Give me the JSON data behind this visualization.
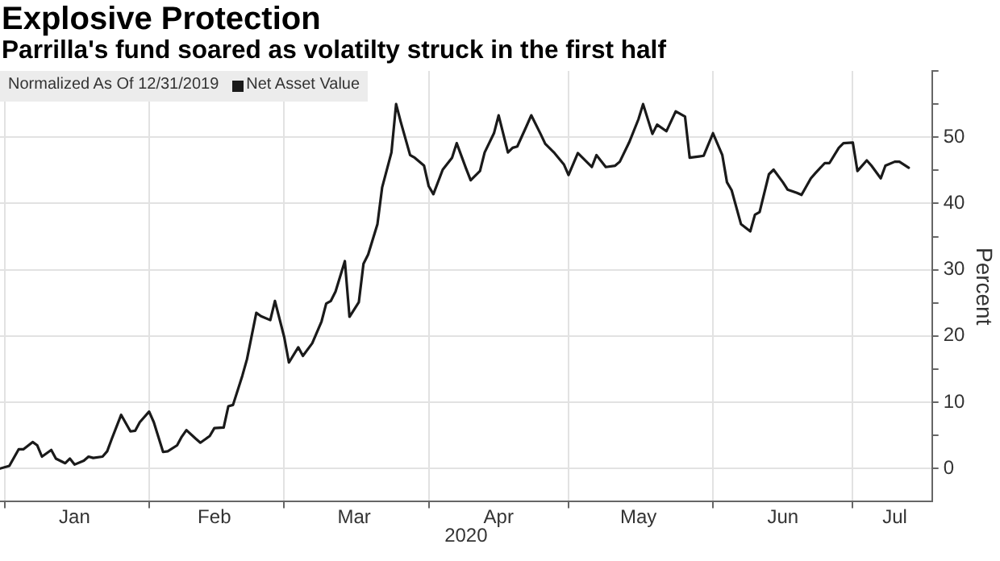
{
  "chart_data": {
    "type": "line",
    "title": "Explosive Protection",
    "subtitle": "Parrilla's fund soared as volatilty struck in the first half",
    "xlabel": "2020",
    "ylabel": "Percent",
    "legend_title": "Normalized As Of 12/31/2019",
    "legend": "top left",
    "grid": true,
    "marker": "none",
    "line_style": "solid",
    "x": [
      "2019-12-31",
      "2020-01-02",
      "2020-01-04",
      "2020-01-05",
      "2020-01-07",
      "2020-01-08",
      "2020-01-09",
      "2020-01-11",
      "2020-01-12",
      "2020-01-14",
      "2020-01-15",
      "2020-01-16",
      "2020-01-18",
      "2020-01-19",
      "2020-01-20",
      "2020-01-22",
      "2020-01-23",
      "2020-01-24",
      "2020-01-26",
      "2020-01-28",
      "2020-01-29",
      "2020-01-30",
      "2020-02-01",
      "2020-02-02",
      "2020-02-04",
      "2020-02-05",
      "2020-02-07",
      "2020-02-08",
      "2020-02-09",
      "2020-02-11",
      "2020-02-12",
      "2020-02-14",
      "2020-02-15",
      "2020-02-17",
      "2020-02-18",
      "2020-02-19",
      "2020-02-21",
      "2020-02-22",
      "2020-02-24",
      "2020-02-25",
      "2020-02-27",
      "2020-02-28",
      "2020-03-01",
      "2020-03-02",
      "2020-03-04",
      "2020-03-05",
      "2020-03-07",
      "2020-03-09",
      "2020-03-10",
      "2020-03-11",
      "2020-03-12",
      "2020-03-14",
      "2020-03-15",
      "2020-03-17",
      "2020-03-18",
      "2020-03-19",
      "2020-03-21",
      "2020-03-22",
      "2020-03-24",
      "2020-03-25",
      "2020-03-26",
      "2020-03-28",
      "2020-03-29",
      "2020-03-31",
      "2020-04-01",
      "2020-04-02",
      "2020-04-04",
      "2020-04-06",
      "2020-04-07",
      "2020-04-09",
      "2020-04-10",
      "2020-04-12",
      "2020-04-13",
      "2020-04-15",
      "2020-04-16",
      "2020-04-18",
      "2020-04-19",
      "2020-04-20",
      "2020-04-22",
      "2020-04-23",
      "2020-04-25",
      "2020-04-26",
      "2020-04-28",
      "2020-04-30",
      "2020-05-01",
      "2020-05-03",
      "2020-05-04",
      "2020-05-06",
      "2020-05-07",
      "2020-05-09",
      "2020-05-11",
      "2020-05-12",
      "2020-05-14",
      "2020-05-16",
      "2020-05-17",
      "2020-05-19",
      "2020-05-20",
      "2020-05-22",
      "2020-05-24",
      "2020-05-26",
      "2020-05-27",
      "2020-05-29",
      "2020-05-30",
      "2020-06-01",
      "2020-06-03",
      "2020-06-04",
      "2020-06-05",
      "2020-06-07",
      "2020-06-09",
      "2020-06-10",
      "2020-06-11",
      "2020-06-13",
      "2020-06-14",
      "2020-06-16",
      "2020-06-17",
      "2020-06-19",
      "2020-06-20",
      "2020-06-22",
      "2020-06-23",
      "2020-06-25",
      "2020-06-26",
      "2020-06-28",
      "2020-06-29",
      "2020-07-01",
      "2020-07-02",
      "2020-07-04",
      "2020-07-05",
      "2020-07-07",
      "2020-07-08",
      "2020-07-10",
      "2020-07-11",
      "2020-07-13"
    ],
    "series": [
      {
        "name": "Net Asset Value",
        "color": "#1a1a1a",
        "values": [
          0,
          0.4,
          2.9,
          2.9,
          4.0,
          3.5,
          1.8,
          2.8,
          1.5,
          0.8,
          1.5,
          0.6,
          1.2,
          1.8,
          1.6,
          1.8,
          2.6,
          4.5,
          8.1,
          5.6,
          5.7,
          7.0,
          8.6,
          7.0,
          2.5,
          2.6,
          3.5,
          4.8,
          5.8,
          4.5,
          3.9,
          4.9,
          6.1,
          6.2,
          9.4,
          9.6,
          14.0,
          16.5,
          23.5,
          23.0,
          22.4,
          25.3,
          19.8,
          16.0,
          18.3,
          17.0,
          18.9,
          22.2,
          24.9,
          25.3,
          26.7,
          31.3,
          22.9,
          25.1,
          30.9,
          32.3,
          36.9,
          42.4,
          47.7,
          55.0,
          52.3,
          47.3,
          46.9,
          45.7,
          42.6,
          41.4,
          45.1,
          46.9,
          49.1,
          45.3,
          43.5,
          44.9,
          47.7,
          50.6,
          53.3,
          47.7,
          48.4,
          48.6,
          51.7,
          53.3,
          50.5,
          49.0,
          47.6,
          45.9,
          44.3,
          47.6,
          46.9,
          45.5,
          47.3,
          45.5,
          45.7,
          46.3,
          49.2,
          52.7,
          55.0,
          50.5,
          51.9,
          50.9,
          53.9,
          53.1,
          46.9,
          47.1,
          47.2,
          50.6,
          47.3,
          43.2,
          42.0,
          36.9,
          35.8,
          38.3,
          38.7,
          44.4,
          45.1,
          43.2,
          42.1,
          41.6,
          41.3,
          43.8,
          44.6,
          46.1,
          46.1,
          48.4,
          49.1,
          49.2,
          44.9,
          46.5,
          45.7,
          43.8,
          45.7,
          46.3,
          46.3,
          45.4
        ]
      }
    ],
    "xlim": [
      "2019-12-31",
      "2020-07-18"
    ],
    "xticks": [
      {
        "value": "2020-01-01",
        "label": null
      },
      {
        "value": "2020-01-16",
        "label": "Jan"
      },
      {
        "value": "2020-02-01",
        "label": null
      },
      {
        "value": "2020-02-15",
        "label": "Feb"
      },
      {
        "value": "2020-03-01",
        "label": null
      },
      {
        "value": "2020-03-16",
        "label": "Mar"
      },
      {
        "value": "2020-04-01",
        "label": null
      },
      {
        "value": "2020-04-16",
        "label": "Apr"
      },
      {
        "value": "2020-05-01",
        "label": null
      },
      {
        "value": "2020-05-16",
        "label": "May"
      },
      {
        "value": "2020-06-01",
        "label": null
      },
      {
        "value": "2020-06-16",
        "label": "Jun"
      },
      {
        "value": "2020-07-01",
        "label": null
      },
      {
        "value": "2020-07-10",
        "label": "Jul"
      }
    ],
    "ylim": [
      -5,
      60
    ],
    "yticks": [
      0,
      {
        "value": 5,
        "label": null
      },
      10,
      {
        "value": 15,
        "label": null
      },
      20,
      {
        "value": 25,
        "label": null
      },
      30,
      {
        "value": 35,
        "label": null
      },
      40,
      {
        "value": 45,
        "label": null
      },
      50,
      {
        "value": 55,
        "label": null
      },
      {
        "value": 60,
        "label": null
      }
    ]
  }
}
